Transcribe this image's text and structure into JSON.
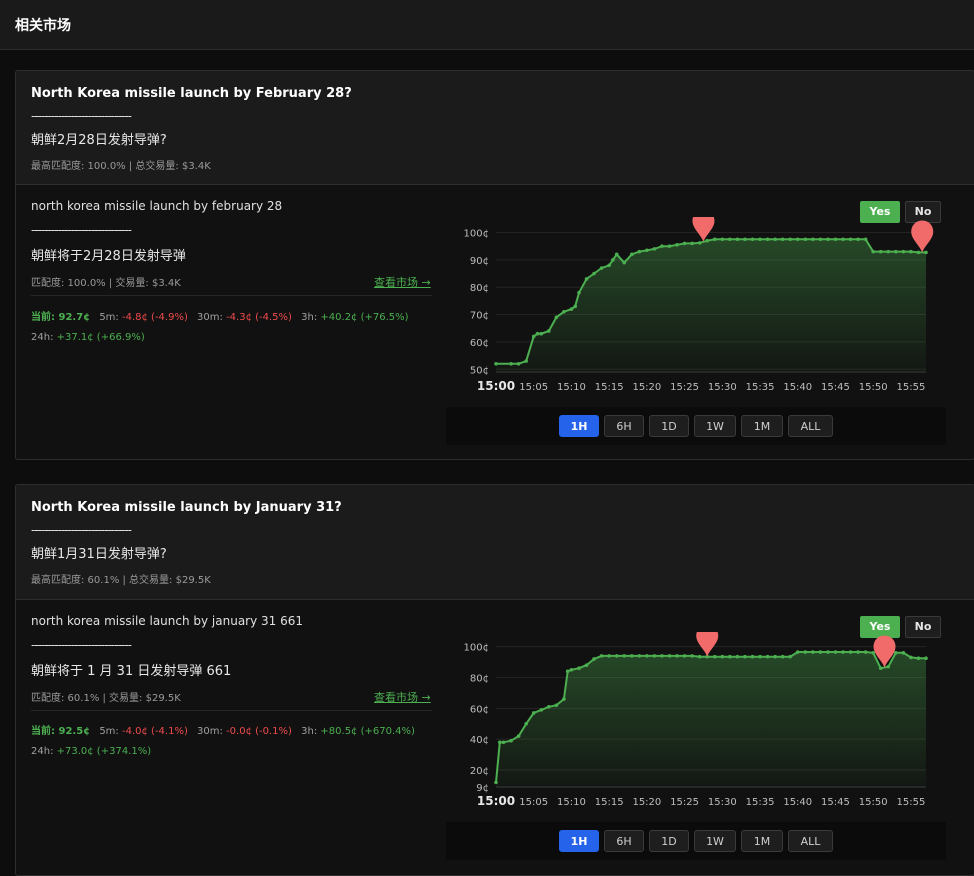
{
  "header": {
    "title": "相关市场"
  },
  "ui": {
    "yes_label": "Yes",
    "no_label": "No",
    "view_link": "查看市场 →",
    "timeframes": [
      "1H",
      "6H",
      "1D",
      "1W",
      "1M",
      "ALL"
    ]
  },
  "colors": {
    "accent_green": "#4caf50",
    "negative_red": "#ef4b4b",
    "active_blue": "#2563eb",
    "marker": "#f26b6b"
  },
  "markets": [
    {
      "title": "North Korea missile launch by February 28?",
      "dashes": "------------------------------",
      "title_cn": "朝鲜2月28日发射导弹?",
      "meta": "最高匹配度: 100.0% | 总交易量: $3.4K",
      "sub": {
        "title": "north korea missile launch by february 28",
        "dashes": "------------------------------",
        "title_cn": "朝鲜将于2月28日发射导弹",
        "meta": "匹配度: 100.0% | 交易量: $3.4K",
        "current": "当前: 92.7¢",
        "m5_label": "5m:",
        "m5": "-4.8¢ (-4.9%)",
        "m30_label": "30m:",
        "m30": "-4.3¢ (-4.5%)",
        "h3_label": "3h:",
        "h3": "+40.2¢ (+76.5%)",
        "h24_label": "24h:",
        "h24": "+37.1¢ (+66.9%)"
      },
      "chart_data": {
        "type": "line",
        "x_tick_labels": [
          "15:00",
          "15:05",
          "15:10",
          "15:15",
          "15:20",
          "15:25",
          "15:30",
          "15:35",
          "15:40",
          "15:45",
          "15:50",
          "15:55"
        ],
        "y_tick_labels": [
          "50¢",
          "60¢",
          "70¢",
          "80¢",
          "90¢",
          "100¢"
        ],
        "y_ticks": [
          50,
          60,
          70,
          80,
          90,
          100
        ],
        "ylim": [
          49,
          102
        ],
        "xlim": [
          0,
          57
        ],
        "active_timeframe": "1H",
        "series": [
          {
            "x": [
              0,
              2,
              3,
              4,
              5,
              5.5,
              6,
              7,
              8,
              9,
              10,
              10.5,
              11,
              12,
              13,
              14,
              15,
              15.5,
              16,
              17,
              18,
              19,
              20,
              21,
              22,
              23,
              24,
              25,
              26,
              27,
              28,
              29,
              30,
              31,
              32,
              33,
              34,
              35,
              36,
              37,
              38,
              39,
              40,
              41,
              42,
              43,
              44,
              45,
              46,
              47,
              48,
              49,
              50,
              51,
              52,
              53,
              54,
              55,
              56,
              57
            ],
            "y": [
              52,
              52,
              52,
              53,
              62,
              63,
              63,
              64,
              69,
              71,
              72,
              73,
              78,
              83,
              85,
              87,
              88,
              90,
              92,
              89,
              92,
              93,
              93.5,
              94,
              95,
              95,
              95.5,
              96,
              96,
              96.2,
              97,
              97.5,
              97.5,
              97.5,
              97.5,
              97.5,
              97.5,
              97.5,
              97.5,
              97.5,
              97.5,
              97.5,
              97.5,
              97.5,
              97.5,
              97.5,
              97.5,
              97.5,
              97.5,
              97.5,
              97.5,
              97.5,
              93,
              93,
              93,
              93,
              93,
              93,
              92.7,
              92.7
            ]
          }
        ],
        "markers_x": [
          27.5,
          56.5
        ]
      }
    },
    {
      "title": "North Korea missile launch by January 31?",
      "dashes": "------------------------------",
      "title_cn": "朝鲜1月31日发射导弹?",
      "meta": "最高匹配度: 60.1% | 总交易量: $29.5K",
      "sub": {
        "title": "north korea missile launch by january 31 661",
        "dashes": "------------------------------",
        "title_cn": "朝鲜将于 1 月 31 日发射导弹 661",
        "meta": "匹配度: 60.1% | 交易量: $29.5K",
        "current": "当前: 92.5¢",
        "m5_label": "5m:",
        "m5": "-4.0¢ (-4.1%)",
        "m30_label": "30m:",
        "m30": "-0.0¢ (-0.1%)",
        "h3_label": "3h:",
        "h3": "+80.5¢ (+670.4%)",
        "h24_label": "24h:",
        "h24": "+73.0¢ (+374.1%)"
      },
      "chart_data": {
        "type": "line",
        "x_tick_labels": [
          "15:00",
          "15:05",
          "15:10",
          "15:15",
          "15:20",
          "15:25",
          "15:30",
          "15:35",
          "15:40",
          "15:45",
          "15:50",
          "15:55"
        ],
        "y_tick_labels": [
          "9¢",
          "20¢",
          "40¢",
          "60¢",
          "80¢",
          "100¢"
        ],
        "y_ticks": [
          9,
          20,
          40,
          60,
          80,
          100
        ],
        "ylim": [
          9,
          103
        ],
        "xlim": [
          0,
          57
        ],
        "active_timeframe": "1H",
        "series": [
          {
            "x": [
              0,
              0.5,
              1,
              2,
              3,
              4,
              5,
              6,
              7,
              8,
              9,
              9.5,
              10,
              11,
              12,
              13,
              14,
              15,
              16,
              17,
              18,
              19,
              20,
              21,
              22,
              23,
              24,
              25,
              26,
              27,
              28,
              29,
              30,
              31,
              32,
              33,
              34,
              35,
              36,
              37,
              38,
              39,
              40,
              41,
              42,
              43,
              44,
              45,
              46,
              47,
              48,
              49,
              50,
              51,
              52,
              53,
              54,
              55,
              56,
              57
            ],
            "y": [
              12,
              38,
              38,
              39,
              42,
              50,
              57,
              59,
              61,
              62,
              66,
              84,
              85,
              86,
              88,
              92,
              94,
              94,
              94,
              94,
              94,
              94,
              94,
              94,
              94,
              94,
              94,
              94,
              94,
              93.5,
              93.5,
              93.5,
              93.5,
              93.5,
              93.5,
              93.5,
              93.5,
              93.5,
              93.5,
              93.5,
              93.5,
              93.5,
              96.5,
              96.5,
              96.5,
              96.5,
              96.5,
              96.5,
              96.5,
              96.5,
              96.5,
              96.5,
              96,
              86,
              87,
              96,
              96,
              93,
              92.5,
              92.5
            ]
          }
        ],
        "markers_x": [
          28,
          51.5
        ]
      }
    }
  ]
}
